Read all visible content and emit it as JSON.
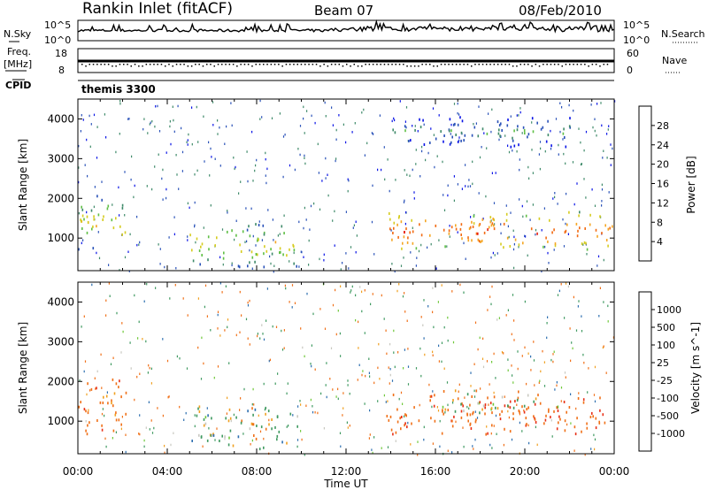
{
  "header": {
    "station": "Rankin Inlet (fitACF)",
    "beam": "Beam 07",
    "date": "08/Feb/2010"
  },
  "nsky_panel": {
    "left_label": "N.Sky",
    "left_ticks": [
      "10^5",
      "10^0"
    ],
    "right_label": "N.Search",
    "right_ticks": [
      "10^5",
      "10^0"
    ]
  },
  "freq_panel": {
    "left_label_1": "Freq.",
    "left_label_2": "[MHz]",
    "left_ticks": [
      "18",
      "8"
    ],
    "right_label": "Nave",
    "right_ticks": [
      "60",
      "0"
    ]
  },
  "cpid": {
    "label": "CPID",
    "value": "themis 3300"
  },
  "chart_data": [
    {
      "type": "heatmap",
      "title": "",
      "xlabel": "Time UT",
      "ylabel": "Slant Range [km]",
      "xlim": [
        "00:00",
        "24:00"
      ],
      "ylim": [
        180,
        4500
      ],
      "x_ticks": [
        "00:00",
        "04:00",
        "08:00",
        "12:00",
        "16:00",
        "20:00",
        "00:00"
      ],
      "y_ticks": [
        1000,
        2000,
        3000,
        4000
      ],
      "colorbar": {
        "label": "Power [dB]",
        "ticks": [
          4,
          8,
          12,
          16,
          20,
          24,
          28
        ],
        "colors": [
          "#0a14e6",
          "#2a52b8",
          "#3f8a6a",
          "#5fbf45",
          "#d6cc20",
          "#f5a623",
          "#f26a12",
          "#e81e0e"
        ]
      },
      "features": [
        {
          "time_hours": [
            0.0,
            2.2
          ],
          "range_km": [
            700,
            2100
          ],
          "level_db": 20
        },
        {
          "time_hours": [
            5.0,
            9.8
          ],
          "range_km": [
            300,
            1400
          ],
          "level_db": 20
        },
        {
          "time_hours": [
            13.8,
            23.9
          ],
          "range_km": [
            700,
            1700
          ],
          "level_db": 28
        },
        {
          "time_hours": [
            14.0,
            22.0
          ],
          "range_km": [
            3300,
            4100
          ],
          "level_db": 12
        }
      ]
    },
    {
      "type": "heatmap",
      "title": "",
      "xlabel": "Time UT",
      "ylabel": "Slant Range [km]",
      "xlim": [
        "00:00",
        "24:00"
      ],
      "ylim": [
        180,
        4500
      ],
      "x_ticks": [
        "00:00",
        "04:00",
        "08:00",
        "12:00",
        "16:00",
        "20:00",
        "00:00"
      ],
      "y_ticks": [
        1000,
        2000,
        3000,
        4000
      ],
      "colorbar": {
        "label": "Velocity [m s^-1]",
        "ticks": [
          1000,
          500,
          100,
          25,
          -25,
          -100,
          -500,
          -1000
        ],
        "colors": [
          "#1433c8",
          "#2d6fb0",
          "#3f9a60",
          "#6fc83a",
          "#c8c8c0",
          "#f0a020",
          "#f07018",
          "#e83018",
          "#e80000"
        ]
      },
      "features": [
        {
          "time_hours": [
            0.0,
            2.2
          ],
          "range_km": [
            700,
            2100
          ],
          "velocity_ms": -300
        },
        {
          "time_hours": [
            5.0,
            9.8
          ],
          "range_km": [
            300,
            1400
          ],
          "velocity_ms": 100
        },
        {
          "time_hours": [
            13.8,
            23.9
          ],
          "range_km": [
            700,
            1700
          ],
          "velocity_ms": -400
        },
        {
          "time_hours": [
            16.0,
            22.0
          ],
          "range_km": [
            1200,
            1800
          ],
          "velocity_ms": 0
        }
      ]
    }
  ]
}
